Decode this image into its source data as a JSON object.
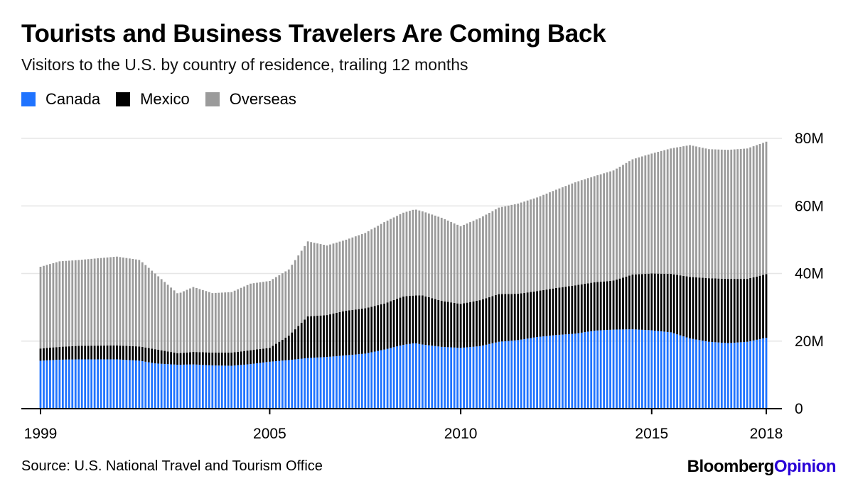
{
  "title": "Tourists and Business Travelers Are Coming Back",
  "subtitle": "Visitors to the U.S. by country of residence, trailing 12 months",
  "source": "Source: U.S. National Travel and Tourism Office",
  "brand": {
    "part1": "Bloomberg",
    "part2": "Opinion",
    "color2": "#2800d7"
  },
  "chart_data": {
    "type": "bar",
    "stacked": true,
    "grid": true,
    "legend_position": "top-left",
    "x_axis": {
      "start_year": 1999,
      "end_year": 2018,
      "ticks": [
        "1999",
        "2005",
        "2010",
        "2015",
        "2018"
      ]
    },
    "y_axis": {
      "min": 0,
      "max": 80,
      "unit": "M",
      "ticks": [
        "0",
        "20M",
        "40M",
        "60M",
        "80M"
      ],
      "position": "right"
    },
    "series": [
      {
        "name": "Canada",
        "color": "#1f73ff",
        "keyframes": [
          [
            1999.0,
            14.2
          ],
          [
            1999.5,
            14.5
          ],
          [
            2000.0,
            14.6
          ],
          [
            2001.0,
            14.6
          ],
          [
            2001.6,
            14.2
          ],
          [
            2002.0,
            13.4
          ],
          [
            2002.6,
            13.0
          ],
          [
            2003.0,
            13.1
          ],
          [
            2003.5,
            12.8
          ],
          [
            2004.0,
            12.7
          ],
          [
            2004.5,
            13.2
          ],
          [
            2005.0,
            13.9
          ],
          [
            2005.5,
            14.4
          ],
          [
            2006.0,
            15.0
          ],
          [
            2006.5,
            15.3
          ],
          [
            2007.0,
            15.8
          ],
          [
            2007.5,
            16.3
          ],
          [
            2008.0,
            17.5
          ],
          [
            2008.5,
            18.9
          ],
          [
            2008.8,
            19.4
          ],
          [
            2009.0,
            19.0
          ],
          [
            2009.5,
            18.3
          ],
          [
            2010.0,
            18.0
          ],
          [
            2010.5,
            18.5
          ],
          [
            2011.0,
            19.8
          ],
          [
            2011.5,
            20.3
          ],
          [
            2012.0,
            21.2
          ],
          [
            2012.5,
            21.8
          ],
          [
            2013.0,
            22.2
          ],
          [
            2013.5,
            23.1
          ],
          [
            2014.0,
            23.4
          ],
          [
            2014.5,
            23.5
          ],
          [
            2015.0,
            23.2
          ],
          [
            2015.5,
            22.6
          ],
          [
            2016.0,
            20.8
          ],
          [
            2016.5,
            19.8
          ],
          [
            2017.0,
            19.4
          ],
          [
            2017.5,
            19.8
          ],
          [
            2018.0,
            21.0
          ]
        ]
      },
      {
        "name": "Mexico",
        "color": "#000000",
        "keyframes": [
          [
            1999.0,
            3.6
          ],
          [
            1999.5,
            3.8
          ],
          [
            2000.0,
            4.0
          ],
          [
            2001.0,
            4.1
          ],
          [
            2001.6,
            4.2
          ],
          [
            2002.0,
            4.2
          ],
          [
            2002.6,
            3.4
          ],
          [
            2003.0,
            3.7
          ],
          [
            2003.5,
            3.8
          ],
          [
            2004.0,
            3.9
          ],
          [
            2004.5,
            4.1
          ],
          [
            2005.0,
            4.1
          ],
          [
            2005.5,
            7.2
          ],
          [
            2006.0,
            12.3
          ],
          [
            2006.5,
            12.4
          ],
          [
            2007.0,
            13.2
          ],
          [
            2007.5,
            13.4
          ],
          [
            2008.0,
            13.6
          ],
          [
            2008.5,
            14.3
          ],
          [
            2008.8,
            14.1
          ],
          [
            2009.0,
            14.5
          ],
          [
            2009.5,
            13.6
          ],
          [
            2010.0,
            13.0
          ],
          [
            2010.5,
            13.6
          ],
          [
            2011.0,
            14.1
          ],
          [
            2011.5,
            13.7
          ],
          [
            2012.0,
            13.6
          ],
          [
            2012.5,
            13.9
          ],
          [
            2013.0,
            14.3
          ],
          [
            2013.5,
            14.3
          ],
          [
            2014.0,
            14.5
          ],
          [
            2014.5,
            16.2
          ],
          [
            2015.0,
            16.8
          ],
          [
            2015.5,
            17.3
          ],
          [
            2016.0,
            18.2
          ],
          [
            2016.5,
            18.8
          ],
          [
            2017.0,
            19.0
          ],
          [
            2017.5,
            18.6
          ],
          [
            2018.0,
            18.8
          ]
        ]
      },
      {
        "name": "Overseas",
        "color": "#9b9b9b",
        "keyframes": [
          [
            1999.0,
            24.2
          ],
          [
            1999.5,
            25.3
          ],
          [
            2000.0,
            25.4
          ],
          [
            2001.0,
            26.3
          ],
          [
            2001.6,
            25.6
          ],
          [
            2002.0,
            22.4
          ],
          [
            2002.6,
            17.6
          ],
          [
            2003.0,
            19.2
          ],
          [
            2003.5,
            17.6
          ],
          [
            2004.0,
            17.9
          ],
          [
            2004.5,
            19.7
          ],
          [
            2005.0,
            19.8
          ],
          [
            2005.5,
            19.6
          ],
          [
            2006.0,
            22.2
          ],
          [
            2006.5,
            20.6
          ],
          [
            2007.0,
            21.0
          ],
          [
            2007.5,
            22.3
          ],
          [
            2008.0,
            24.1
          ],
          [
            2008.5,
            24.8
          ],
          [
            2008.8,
            25.5
          ],
          [
            2009.0,
            24.9
          ],
          [
            2009.5,
            24.6
          ],
          [
            2010.0,
            23.0
          ],
          [
            2010.5,
            24.3
          ],
          [
            2011.0,
            25.6
          ],
          [
            2011.5,
            26.7
          ],
          [
            2012.0,
            27.7
          ],
          [
            2012.5,
            29.1
          ],
          [
            2013.0,
            30.5
          ],
          [
            2013.5,
            31.4
          ],
          [
            2014.0,
            32.6
          ],
          [
            2014.5,
            34.1
          ],
          [
            2015.0,
            35.5
          ],
          [
            2015.5,
            37.1
          ],
          [
            2016.0,
            39.0
          ],
          [
            2016.5,
            38.2
          ],
          [
            2017.0,
            38.2
          ],
          [
            2017.5,
            38.6
          ],
          [
            2018.0,
            39.2
          ]
        ]
      }
    ]
  }
}
